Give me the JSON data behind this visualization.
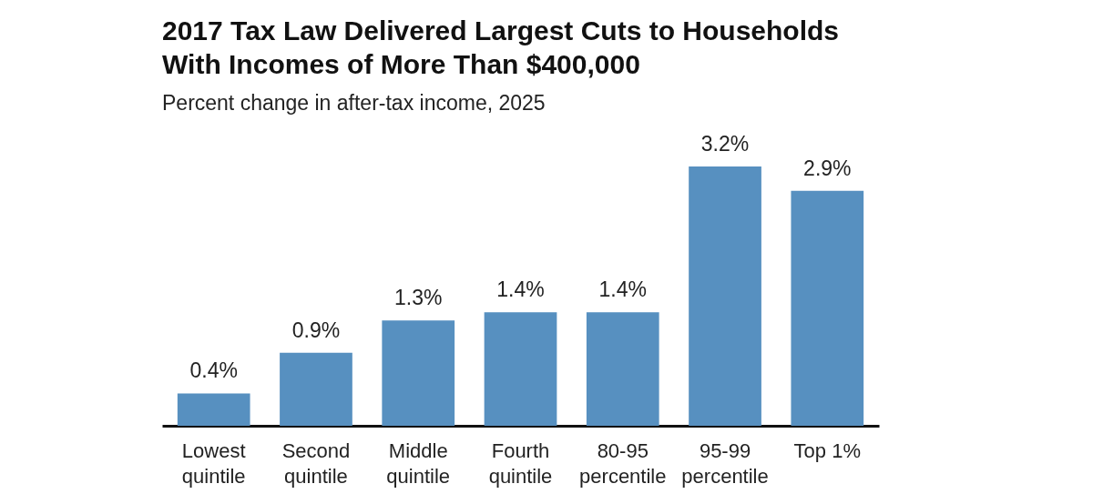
{
  "chart_data": {
    "type": "bar",
    "title": "2017 Tax Law Delivered Largest Cuts to Households With Incomes of More Than $400,000",
    "subtitle": "Percent change in after-tax income, 2025",
    "categories": [
      "Lowest quintile",
      "Second quintile",
      "Middle quintile",
      "Fourth quintile",
      "80-95 percentile",
      "95-99 percentile",
      "Top 1%"
    ],
    "values": [
      0.4,
      0.9,
      1.3,
      1.4,
      1.4,
      3.2,
      2.9
    ],
    "value_labels": [
      "0.4%",
      "0.9%",
      "1.3%",
      "1.4%",
      "1.4%",
      "3.2%",
      "2.9%"
    ],
    "color": "#5790c0",
    "grid": false,
    "tick_labels": "x"
  }
}
